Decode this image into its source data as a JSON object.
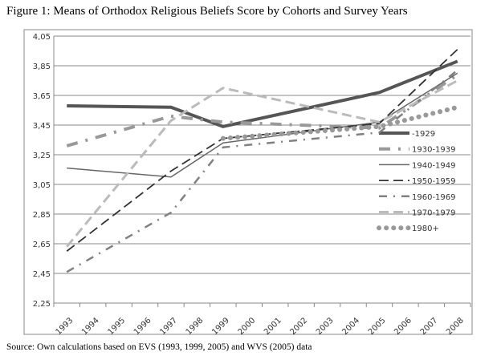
{
  "chart_data": {
    "type": "line",
    "title": "Figure 1: Means of Orthodox Religious Beliefs Score by Cohorts and Survey Years",
    "source": "Source: Own calculations based on EVS (1993, 1999, 2005) and WVS (2005) data",
    "xlabel": "",
    "ylabel": "",
    "categories": [
      "1993",
      "1994",
      "1995",
      "1996",
      "1997",
      "1998",
      "1999",
      "2000",
      "2001",
      "2002",
      "2003",
      "2004",
      "2005",
      "2006",
      "2007",
      "2008"
    ],
    "y_ticks": [
      "4,05",
      "3,85",
      "3,65",
      "3,45",
      "3,25",
      "3,05",
      "2,85",
      "2,65",
      "2,45",
      "2,25"
    ],
    "ylim": [
      2.25,
      4.05
    ],
    "grid": true,
    "legend_position": "right-inside",
    "series": [
      {
        "name": "-1929",
        "color": "#555555",
        "style": "thick-solid",
        "points": {
          "1993": 3.58,
          "1997": 3.57,
          "1999": 3.44,
          "2005": 3.67,
          "2008": 3.88
        }
      },
      {
        "name": "1930-1939",
        "color": "#999999",
        "style": "thick-dashdot",
        "points": {
          "1993": 3.31,
          "1997": 3.51,
          "1999": 3.47,
          "2005": 3.43,
          "2008": 3.79
        }
      },
      {
        "name": "1940-1949",
        "color": "#666666",
        "style": "solid",
        "points": {
          "1993": 3.16,
          "1997": 3.1,
          "1999": 3.33,
          "2005": 3.47,
          "2008": 3.8
        }
      },
      {
        "name": "1950-1959",
        "color": "#333333",
        "style": "long-dash",
        "points": {
          "1993": 2.6,
          "1997": 3.14,
          "1999": 3.36,
          "2005": 3.46,
          "2008": 3.96
        }
      },
      {
        "name": "1960-1969",
        "color": "#808080",
        "style": "dash-dot",
        "points": {
          "1993": 2.46,
          "1997": 2.86,
          "1999": 3.3,
          "2005": 3.4,
          "2008": 3.82
        }
      },
      {
        "name": "1970-1979",
        "color": "#bbbbbb",
        "style": "long-dash",
        "points": {
          "1993": 2.63,
          "1997": 3.48,
          "1999": 3.7,
          "2005": 3.47,
          "2008": 3.75
        }
      },
      {
        "name": "1980+",
        "color": "#999999",
        "style": "dots",
        "points": {
          "1999": 3.36,
          "2005": 3.44,
          "2008": 3.57
        }
      }
    ]
  }
}
